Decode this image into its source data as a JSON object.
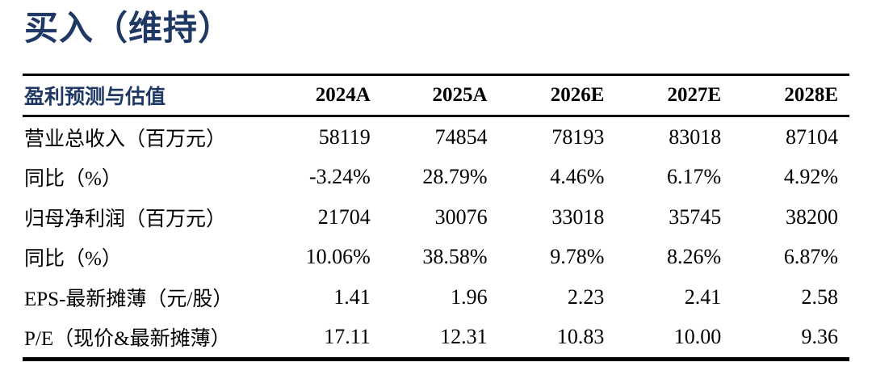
{
  "title": "买入（维持）",
  "colors": {
    "accent_navy": "#1f3864",
    "text": "#000000",
    "rule": "#000000",
    "background": "#ffffff"
  },
  "table": {
    "header": {
      "label": "盈利预测与估值",
      "years": [
        "2024A",
        "2025A",
        "2026E",
        "2027E",
        "2028E"
      ]
    },
    "rows": [
      {
        "label": "营业总收入（百万元）",
        "values": [
          "58119",
          "74854",
          "78193",
          "83018",
          "87104"
        ]
      },
      {
        "label": "同比（%）",
        "values": [
          "-3.24%",
          "28.79%",
          "4.46%",
          "6.17%",
          "4.92%"
        ]
      },
      {
        "label": "归母净利润（百万元）",
        "values": [
          "21704",
          "30076",
          "33018",
          "35745",
          "38200"
        ]
      },
      {
        "label": "同比（%）",
        "values": [
          "10.06%",
          "38.58%",
          "9.78%",
          "8.26%",
          "6.87%"
        ]
      },
      {
        "label": "EPS-最新摊薄（元/股）",
        "values": [
          "1.41",
          "1.96",
          "2.23",
          "2.41",
          "2.58"
        ]
      },
      {
        "label": "P/E（现价&最新摊薄）",
        "values": [
          "17.11",
          "12.31",
          "10.83",
          "10.00",
          "9.36"
        ]
      }
    ]
  }
}
